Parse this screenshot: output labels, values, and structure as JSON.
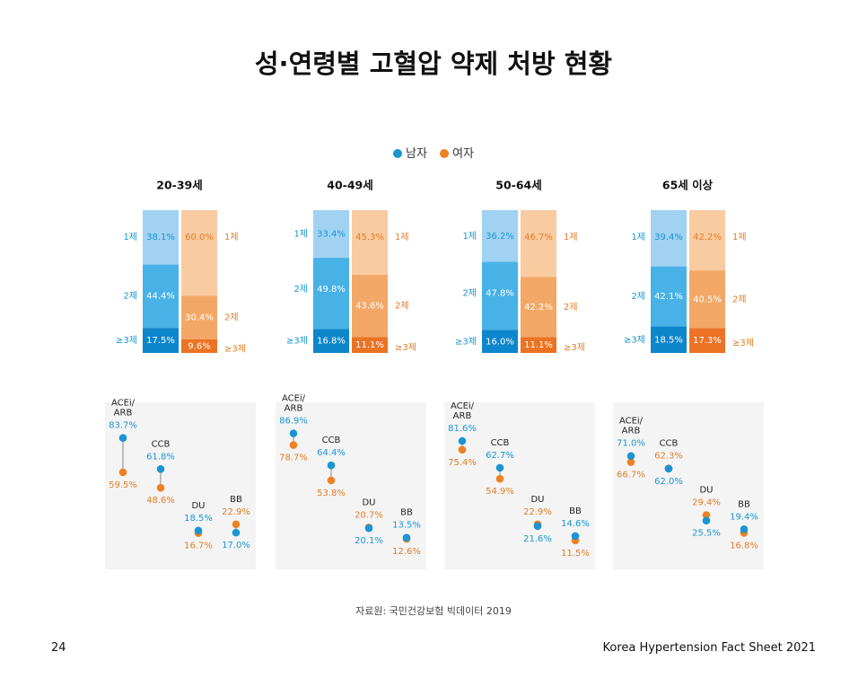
{
  "page": {
    "title": "성·연령별 고혈압 약제 처방 현황",
    "source": "자료원: 국민건강보험 빅데이터 2019",
    "page_number": "24",
    "footer": "Korea Hypertension Fact Sheet 2021"
  },
  "legend": [
    {
      "name": "남자",
      "color": "#1a95d2"
    },
    {
      "name": "여자",
      "color": "#ee8124"
    }
  ],
  "colors": {
    "male": [
      "#a1d2f2",
      "#48b2e6",
      "#0d86cc"
    ],
    "female": [
      "#f9cba1",
      "#f3a867",
      "#eb7324"
    ],
    "male_dot": "#1a95d2",
    "female_dot": "#ee8124",
    "panel_bg": "#f4f4f4",
    "male_text": "#1a95d2",
    "female_text": "#e07d28"
  },
  "chart_data": {
    "type": "bar",
    "stacked": true,
    "units": "%",
    "groups": [
      "20-39세",
      "40-49세",
      "50-64세",
      "65세 이상"
    ],
    "stack_categories": [
      "1제",
      "2제",
      "≥3제"
    ],
    "series": [
      {
        "name": "남자",
        "values": [
          [
            38.1,
            44.4,
            17.5
          ],
          [
            33.4,
            49.8,
            16.8
          ],
          [
            36.2,
            47.8,
            16.0
          ],
          [
            39.4,
            42.1,
            18.5
          ]
        ]
      },
      {
        "name": "여자",
        "values": [
          [
            60.0,
            30.4,
            9.6
          ],
          [
            45.3,
            43.6,
            11.1
          ],
          [
            46.7,
            42.2,
            11.1
          ],
          [
            42.2,
            40.5,
            17.3
          ]
        ]
      }
    ],
    "drug_classes": {
      "type": "scatter",
      "categories": [
        "ACEi/\nARB",
        "CCB",
        "DU",
        "BB"
      ],
      "ylim": [
        0,
        100
      ],
      "groups": [
        {
          "group": "20-39세",
          "male": [
            83.7,
            61.8,
            18.5,
            17.0
          ],
          "female": [
            59.5,
            48.6,
            16.7,
            22.9
          ]
        },
        {
          "group": "40-49세",
          "male": [
            86.9,
            64.4,
            20.1,
            13.5
          ],
          "female": [
            78.7,
            53.8,
            20.7,
            12.6
          ]
        },
        {
          "group": "50-64세",
          "male": [
            81.6,
            62.7,
            21.6,
            14.6
          ],
          "female": [
            75.4,
            54.9,
            22.9,
            11.5
          ]
        },
        {
          "group": "65세 이상",
          "male": [
            71.0,
            62.0,
            25.5,
            19.4
          ],
          "female": [
            66.7,
            62.3,
            29.4,
            16.8
          ]
        }
      ]
    }
  }
}
